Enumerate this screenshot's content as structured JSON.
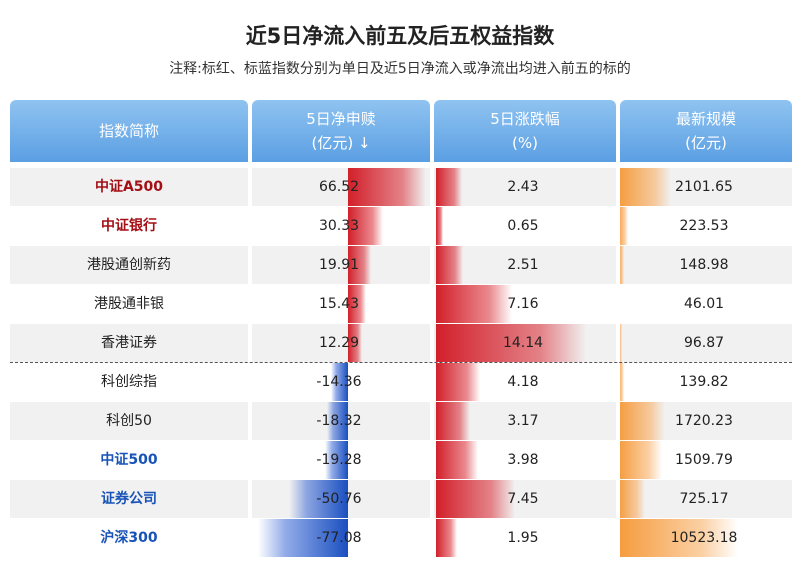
{
  "title": "近5日净流入前五及后五权益指数",
  "subtitle": "注释:标红、标蓝指数分别为单日及近5日净流入或净流出均进入前五的标的",
  "chart_data": {
    "type": "table",
    "headers": [
      {
        "line1": "指数简称",
        "line2": ""
      },
      {
        "line1": "5日净申赎",
        "line2": "(亿元) ↓"
      },
      {
        "line1": "5日涨跌幅",
        "line2": "(%)"
      },
      {
        "line1": "最新规模",
        "line2": "(亿元)"
      }
    ],
    "rows": [
      {
        "name": "中证A500",
        "highlight": "red",
        "net": 66.52,
        "net_text": "66.52",
        "chg": 2.43,
        "chg_text": "2.43",
        "scale": 2101.65,
        "scale_text": "2101.65"
      },
      {
        "name": "中证银行",
        "highlight": "red",
        "net": 30.33,
        "net_text": "30.33",
        "chg": 0.65,
        "chg_text": "0.65",
        "scale": 223.53,
        "scale_text": "223.53"
      },
      {
        "name": "港股通创新药",
        "highlight": "",
        "net": 19.91,
        "net_text": "19.91",
        "chg": 2.51,
        "chg_text": "2.51",
        "scale": 148.98,
        "scale_text": "148.98"
      },
      {
        "name": "港股通非银",
        "highlight": "",
        "net": 15.43,
        "net_text": "15.43",
        "chg": 7.16,
        "chg_text": "7.16",
        "scale": 46.01,
        "scale_text": "46.01"
      },
      {
        "name": "香港证券",
        "highlight": "",
        "net": 12.29,
        "net_text": "12.29",
        "chg": 14.14,
        "chg_text": "14.14",
        "scale": 96.87,
        "scale_text": "96.87"
      },
      {
        "name": "科创综指",
        "highlight": "",
        "net": -14.36,
        "net_text": "-14.36",
        "chg": 4.18,
        "chg_text": "4.18",
        "scale": 139.82,
        "scale_text": "139.82"
      },
      {
        "name": "科创50",
        "highlight": "",
        "net": -18.32,
        "net_text": "-18.32",
        "chg": 3.17,
        "chg_text": "3.17",
        "scale": 1720.23,
        "scale_text": "1720.23"
      },
      {
        "name": "中证500",
        "highlight": "blue",
        "net": -19.28,
        "net_text": "-19.28",
        "chg": 3.98,
        "chg_text": "3.98",
        "scale": 1509.79,
        "scale_text": "1509.79"
      },
      {
        "name": "证券公司",
        "highlight": "blue",
        "net": -50.76,
        "net_text": "-50.76",
        "chg": 7.45,
        "chg_text": "7.45",
        "scale": 725.17,
        "scale_text": "725.17"
      },
      {
        "name": "沪深300",
        "highlight": "blue",
        "net": -77.08,
        "net_text": "-77.08",
        "chg": 1.95,
        "chg_text": "1.95",
        "scale": 10523.18,
        "scale_text": "10523.18"
      }
    ]
  },
  "colors": {
    "header_top": "#8fc3f0",
    "header_bottom": "#5b9fe3",
    "inflow_bar": "#d21f2a",
    "outflow_bar": "#1a4fc0",
    "change_bar": "#d21f2a",
    "scale_bar": "#f59b3c",
    "highlight_red": "#a30f15",
    "highlight_blue": "#1853b8"
  }
}
